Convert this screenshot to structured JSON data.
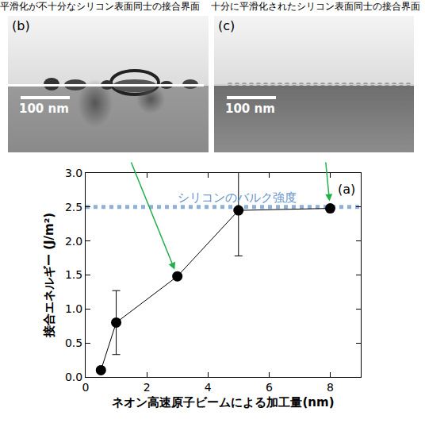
{
  "chart_data": {
    "type": "line",
    "panel_label": "(a)",
    "xlabel": "ネオン高速原子ビームによる加工量(nm)",
    "ylabel": "接合エネルギー (J/m²)",
    "x": [
      0.5,
      1,
      3,
      5,
      8
    ],
    "values": [
      0.1,
      0.8,
      1.48,
      2.45,
      2.48
    ],
    "errors": [
      null,
      0.47,
      null,
      0.67,
      null
    ],
    "color": "#000000",
    "marker": "circle",
    "line_style": "solid",
    "xlim": [
      0,
      9
    ],
    "xticks": [
      0,
      2,
      4,
      6,
      8
    ],
    "ylim": [
      0,
      3
    ],
    "yticks": [
      {
        "value": 0,
        "label": "0.0"
      },
      {
        "value": 0.5,
        "label": "0.5"
      },
      {
        "value": 1,
        "label": "1.0"
      },
      {
        "value": 1.5,
        "label": "1.5"
      },
      {
        "value": 2,
        "label": "2.0"
      },
      {
        "value": 2.5,
        "label": "2.5"
      },
      {
        "value": 3,
        "label": "3.0"
      }
    ],
    "grid": false,
    "reference_line": {
      "value": 2.5,
      "label": "シリコンのバルク強度",
      "color": "#8fb0d9",
      "line_style": "dot"
    }
  },
  "photos": [
    {
      "label": "(b)",
      "caption": "平滑化が不十分なシリコン表面同士の接合界面",
      "scale_bar": "100 nm",
      "arrow_to_x": 3
    },
    {
      "label": "(c)",
      "caption": "十分に平滑化されたシリコン表面同士の接合界面",
      "scale_bar": "100 nm",
      "arrow_to_x": 8
    }
  ]
}
